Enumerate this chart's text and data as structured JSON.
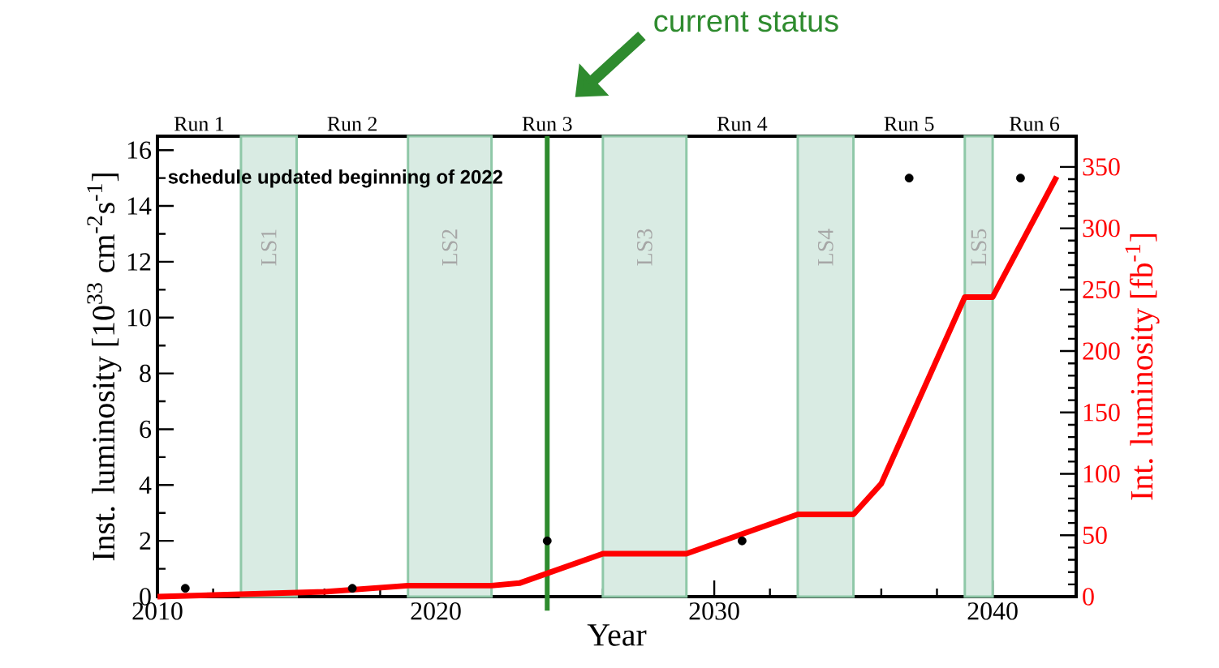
{
  "chart_data": {
    "type": "line",
    "xlabel": "Year",
    "ylabel": "Inst. luminosity [10$^{33}$ cm$^{-2}$s$^{-1}$]",
    "y2label": "Int. luminosity [fb$^{-1}$]",
    "xlim": [
      2010,
      2043
    ],
    "xticks": [
      2010,
      2020,
      2030,
      2040
    ],
    "ylim": [
      0,
      16.5
    ],
    "yticks": [
      0,
      2,
      4,
      6,
      8,
      10,
      12,
      14,
      16
    ],
    "y2lim": [
      0,
      375
    ],
    "y2ticks": [
      0,
      50,
      100,
      150,
      200,
      250,
      300,
      350
    ],
    "series": [
      {
        "type": "scatter",
        "color": "#000000",
        "marker": "circle",
        "x": [
          2011,
          2017,
          2024,
          2031,
          2037,
          2041
        ],
        "values": [
          0.3,
          0.3,
          2,
          2,
          15,
          15
        ]
      },
      {
        "axis": "y2",
        "color": "#ff0000",
        "marker": "none",
        "line_style": "solid",
        "x": [
          2010,
          2016,
          2019,
          2022,
          2023,
          2026,
          2029,
          2033,
          2035,
          2036,
          2039,
          2040,
          2042.3
        ],
        "values": [
          0,
          4,
          9,
          9,
          11,
          35,
          35,
          67,
          67,
          92,
          244,
          244,
          342
        ]
      }
    ],
    "bands": [
      {
        "axis": "x",
        "from": 2013,
        "to": 2015,
        "label": "LS1",
        "color": "#d9ebe3"
      },
      {
        "axis": "x",
        "from": 2019,
        "to": 2022,
        "label": "LS2",
        "color": "#d9ebe3"
      },
      {
        "axis": "x",
        "from": 2026,
        "to": 2029,
        "label": "LS3",
        "color": "#d9ebe3"
      },
      {
        "axis": "x",
        "from": 2033,
        "to": 2035,
        "label": "LS4",
        "color": "#d9ebe3"
      },
      {
        "axis": "x",
        "from": 2039,
        "to": 2040,
        "label": "LS5",
        "color": "#d9ebe3"
      }
    ],
    "ref_lines": [
      {
        "axis": "x",
        "value": 2024,
        "label": "current status",
        "color": "#2e8b2e",
        "line_style": "solid"
      }
    ],
    "annotations": [
      "schedule updated beginning of 2022",
      "Run 1",
      "Run 2",
      "Run 3",
      "Run 4",
      "Run 5",
      "Run 6"
    ],
    "grid": false
  }
}
